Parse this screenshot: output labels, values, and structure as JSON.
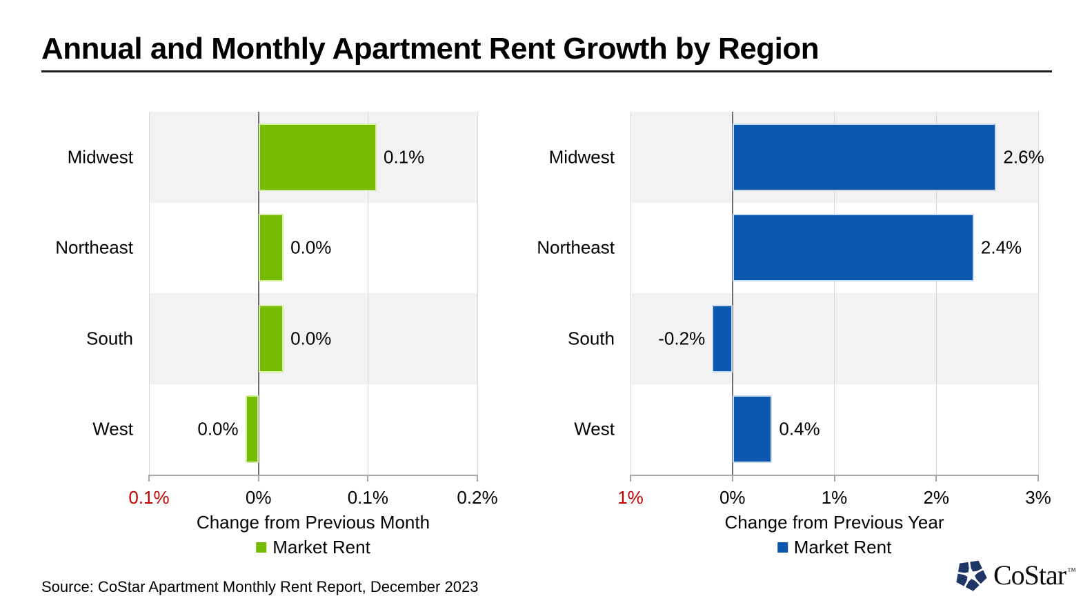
{
  "page": {
    "title": "Annual and Monthly Apartment Rent Growth by Region",
    "source": "Source: CoStar Apartment Monthly Rent Report, December 2023",
    "logo_text": "CoStar",
    "logo_tm": "™",
    "logo_mark_color": "#1F3566"
  },
  "chart_data": [
    {
      "type": "bar",
      "orientation": "horizontal",
      "categories": [
        "Midwest",
        "Northeast",
        "South",
        "West"
      ],
      "series": [
        {
          "name": "Market Rent",
          "values": [
            0.108,
            0.023,
            0.023,
            -0.012
          ],
          "data_labels": [
            "0.1%",
            "0.0%",
            "0.0%",
            "0.0%"
          ]
        }
      ],
      "xlabel": "Change from Previous Month",
      "legend_label": "Market Rent",
      "legend_position": "bottom",
      "xlim": [
        -0.1,
        0.2
      ],
      "xticks": [
        -0.1,
        0,
        0.1,
        0.2
      ],
      "xtick_labels": [
        "0.1%",
        "0%",
        "0.1%",
        "0.2%"
      ],
      "xtick_label_colors": [
        "#C00000",
        "#000000",
        "#000000",
        "#000000"
      ],
      "bar_color": "#76BC02",
      "bar_edge_color": "#D4EDA1",
      "grid": true,
      "zero_line": true,
      "row_band_color": "#F2F2F2"
    },
    {
      "type": "bar",
      "orientation": "horizontal",
      "categories": [
        "Midwest",
        "Northeast",
        "South",
        "West"
      ],
      "series": [
        {
          "name": "Market Rent",
          "values": [
            2.59,
            2.37,
            -0.2,
            0.39
          ],
          "data_labels": [
            "2.6%",
            "2.4%",
            "-0.2%",
            "0.4%"
          ]
        }
      ],
      "xlabel": "Change from Previous Year",
      "legend_label": "Market Rent",
      "legend_position": "bottom",
      "xlim": [
        -1,
        3
      ],
      "xticks": [
        -1,
        0,
        1,
        2,
        3
      ],
      "xtick_labels": [
        "1%",
        "0%",
        "1%",
        "2%",
        "3%"
      ],
      "xtick_label_colors": [
        "#C00000",
        "#000000",
        "#000000",
        "#000000",
        "#000000"
      ],
      "bar_color": "#0B58AE",
      "bar_edge_color": "#C7DCF2",
      "grid": true,
      "zero_line": true,
      "row_band_color": "#F2F2F2"
    }
  ]
}
